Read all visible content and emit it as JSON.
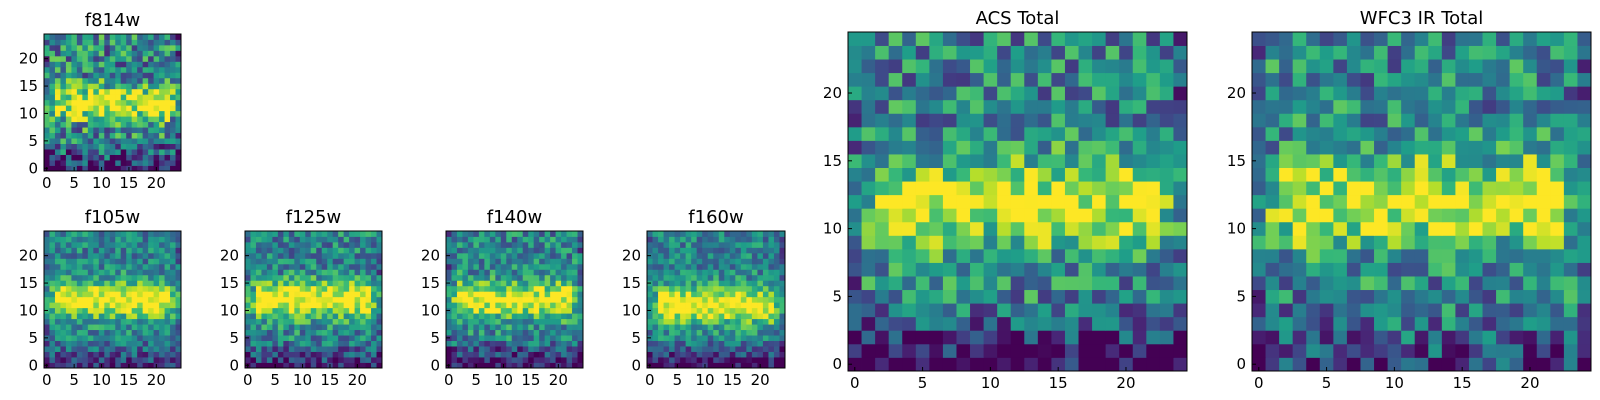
{
  "chart_data": [
    {
      "type": "heatmap",
      "title": "f814w",
      "xticks": [
        "0",
        "5",
        "10",
        "15",
        "20"
      ],
      "yticks": [
        "0",
        "5",
        "10",
        "15",
        "20"
      ],
      "xlim": [
        -0.5,
        24.5
      ],
      "ylim": [
        -0.5,
        24.5
      ],
      "colormap": "viridis",
      "grid": false,
      "band_row": 12,
      "band_strength": 0.55,
      "noise": 0.34,
      "bottom_dark": 0.35,
      "seed": 11
    },
    {
      "type": "heatmap",
      "title": "f105w",
      "xticks": [
        "0",
        "5",
        "10",
        "15",
        "20"
      ],
      "yticks": [
        "0",
        "5",
        "10",
        "15",
        "20"
      ],
      "xlim": [
        -0.5,
        24.5
      ],
      "ylim": [
        -0.5,
        24.5
      ],
      "colormap": "viridis",
      "grid": false,
      "band_row": 12,
      "band_strength": 0.6,
      "noise": 0.22,
      "bottom_dark": 0.3,
      "seed": 23
    },
    {
      "type": "heatmap",
      "title": "f125w",
      "xticks": [
        "0",
        "5",
        "10",
        "15",
        "20"
      ],
      "yticks": [
        "0",
        "5",
        "10",
        "15",
        "20"
      ],
      "xlim": [
        -0.5,
        24.5
      ],
      "ylim": [
        -0.5,
        24.5
      ],
      "colormap": "viridis",
      "grid": false,
      "band_row": 12,
      "band_strength": 0.6,
      "noise": 0.25,
      "bottom_dark": 0.35,
      "seed": 37
    },
    {
      "type": "heatmap",
      "title": "f140w",
      "xticks": [
        "0",
        "5",
        "10",
        "15",
        "20"
      ],
      "yticks": [
        "0",
        "5",
        "10",
        "15",
        "20"
      ],
      "xlim": [
        -0.5,
        24.5
      ],
      "ylim": [
        -0.5,
        24.5
      ],
      "colormap": "viridis",
      "grid": false,
      "band_row": 12,
      "band_strength": 0.55,
      "noise": 0.25,
      "bottom_dark": 0.45,
      "seed": 41
    },
    {
      "type": "heatmap",
      "title": "f160w",
      "xticks": [
        "0",
        "5",
        "10",
        "15",
        "20"
      ],
      "yticks": [
        "0",
        "5",
        "10",
        "15",
        "20"
      ],
      "xlim": [
        -0.5,
        24.5
      ],
      "ylim": [
        -0.5,
        24.5
      ],
      "colormap": "viridis",
      "grid": false,
      "band_row": 11,
      "band_strength": 0.6,
      "noise": 0.22,
      "bottom_dark": 0.4,
      "seed": 53
    },
    {
      "type": "heatmap",
      "title": "ACS Total",
      "xticks": [
        "0",
        "5",
        "10",
        "15",
        "20"
      ],
      "yticks": [
        "0",
        "5",
        "10",
        "15",
        "20"
      ],
      "xlim": [
        -0.5,
        24.5
      ],
      "ylim": [
        -0.5,
        24.5
      ],
      "colormap": "viridis",
      "grid": false,
      "band_row": 12,
      "band_strength": 0.55,
      "noise": 0.3,
      "bottom_dark": 0.45,
      "seed": 67
    },
    {
      "type": "heatmap",
      "title": "WFC3 IR Total",
      "xticks": [
        "0",
        "5",
        "10",
        "15",
        "20"
      ],
      "yticks": [
        "0",
        "5",
        "10",
        "15",
        "20"
      ],
      "xlim": [
        -0.5,
        24.5
      ],
      "ylim": [
        -0.5,
        24.5
      ],
      "colormap": "viridis",
      "grid": false,
      "band_row": 12,
      "band_strength": 0.55,
      "noise": 0.3,
      "bottom_dark": 0.25,
      "seed": 79
    }
  ]
}
